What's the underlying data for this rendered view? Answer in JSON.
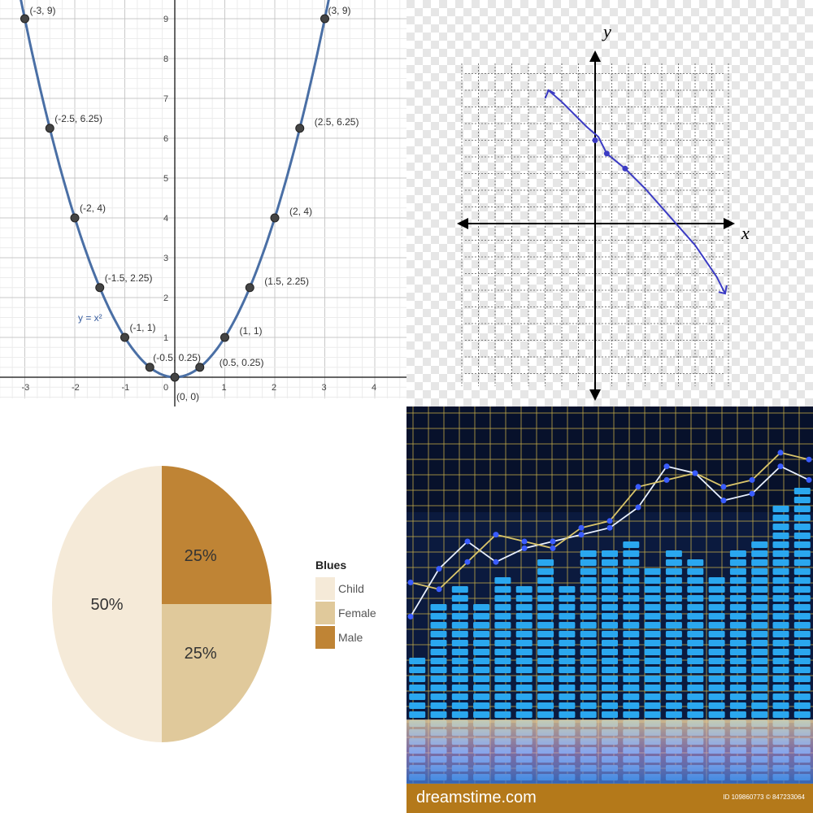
{
  "chart_data": [
    {
      "type": "line",
      "equation_label": "y = x²",
      "xlim": [
        -3.3,
        4.6
      ],
      "ylim": [
        -0.7,
        9.5
      ],
      "x_ticks": [
        -3,
        -2,
        -1,
        0,
        1,
        2,
        3,
        4
      ],
      "y_ticks": [
        1,
        2,
        3,
        4,
        5,
        6,
        7,
        8,
        9
      ],
      "grid": true,
      "points": [
        {
          "x": -3,
          "y": 9,
          "label": "(-3, 9)"
        },
        {
          "x": -2.5,
          "y": 6.25,
          "label": "(-2.5, 6.25)"
        },
        {
          "x": -2,
          "y": 4,
          "label": "(-2, 4)"
        },
        {
          "x": -1.5,
          "y": 2.25,
          "label": "(-1.5, 2.25)"
        },
        {
          "x": -1,
          "y": 1,
          "label": "(-1, 1)"
        },
        {
          "x": -0.5,
          "y": 0.25,
          "label": "(-0.5, 0.25)"
        },
        {
          "x": 0,
          "y": 0,
          "label": "(0, 0)"
        },
        {
          "x": 0.5,
          "y": 0.25,
          "label": "(0.5, 0.25)"
        },
        {
          "x": 1,
          "y": 1,
          "label": "(1, 1)"
        },
        {
          "x": 1.5,
          "y": 2.25,
          "label": "(1.5, 2.25)"
        },
        {
          "x": 2,
          "y": 4,
          "label": "(2, 4)"
        },
        {
          "x": 2.5,
          "y": 6.25,
          "label": "(2.5, 6.25)"
        },
        {
          "x": 3,
          "y": 9,
          "label": "(3, 9)"
        }
      ],
      "colors": {
        "curve": "#4a6fa5",
        "point": "#444444",
        "grid": "#d4d4d4"
      }
    },
    {
      "type": "line",
      "xlabel": "x",
      "ylabel": "y",
      "xlim": [
        -8,
        8
      ],
      "ylim": [
        -9.5,
        9.5
      ],
      "grid": true,
      "grid_style": "dashed",
      "series": [
        {
          "values": [
            {
              "x": -2.8,
              "y": 8.0
            },
            {
              "x": -2.0,
              "y": 7.3
            },
            {
              "x": -0.5,
              "y": 5.8
            },
            {
              "x": 0.2,
              "y": 5.2
            },
            {
              "x": 0.7,
              "y": 4.2
            },
            {
              "x": 1.8,
              "y": 3.3
            },
            {
              "x": 3.0,
              "y": 2.1
            },
            {
              "x": 4.5,
              "y": 0.4
            },
            {
              "x": 6.0,
              "y": -1.3
            },
            {
              "x": 7.3,
              "y": -3.2
            },
            {
              "x": 7.8,
              "y": -4.2
            }
          ]
        }
      ],
      "marked_points": [
        {
          "x": 0.0,
          "y": 5.0
        },
        {
          "x": 0.7,
          "y": 4.2
        },
        {
          "x": 1.8,
          "y": 3.3
        }
      ],
      "colors": {
        "line": "#3b3bc4",
        "axis": "#000000",
        "grid": "#555555"
      }
    },
    {
      "type": "pie",
      "legend_title": "Blues",
      "legend_position": "right",
      "slices": [
        {
          "name": "Male",
          "value": 25,
          "label": "25%",
          "color": "#bf8435"
        },
        {
          "name": "Female",
          "value": 25,
          "label": "25%",
          "color": "#e0c99b"
        },
        {
          "name": "Child",
          "value": 50,
          "label": "50%",
          "color": "#f5ead8"
        }
      ],
      "legend": [
        "Child",
        "Female",
        "Male"
      ]
    },
    {
      "type": "bar",
      "values": [
        0.38,
        0.52,
        0.58,
        0.54,
        0.62,
        0.58,
        0.66,
        0.58,
        0.68,
        0.7,
        0.72,
        0.64,
        0.68,
        0.66,
        0.6,
        0.7,
        0.72,
        0.82,
        0.86
      ],
      "line_series": [
        {
          "name": "",
          "values": [
            0.48,
            0.62,
            0.7,
            0.64,
            0.68,
            0.7,
            0.72,
            0.74,
            0.8,
            0.92,
            0.9,
            0.82,
            0.84,
            0.92,
            0.88
          ]
        },
        {
          "name": "",
          "values": [
            0.58,
            0.56,
            0.64,
            0.72,
            0.7,
            0.68,
            0.74,
            0.76,
            0.86,
            0.88,
            0.9,
            0.86,
            0.88,
            0.96,
            0.94
          ]
        }
      ],
      "colors": {
        "bar": "#2aa7ef",
        "background": "#0b1a3e",
        "grid": "#c9b04a",
        "line1": "#e8f0ff",
        "line2": "#d9c46a",
        "marker": "#3a5cff"
      },
      "watermark": "dreamstime.com",
      "image_id": "ID 109860773 © 847233064"
    }
  ]
}
